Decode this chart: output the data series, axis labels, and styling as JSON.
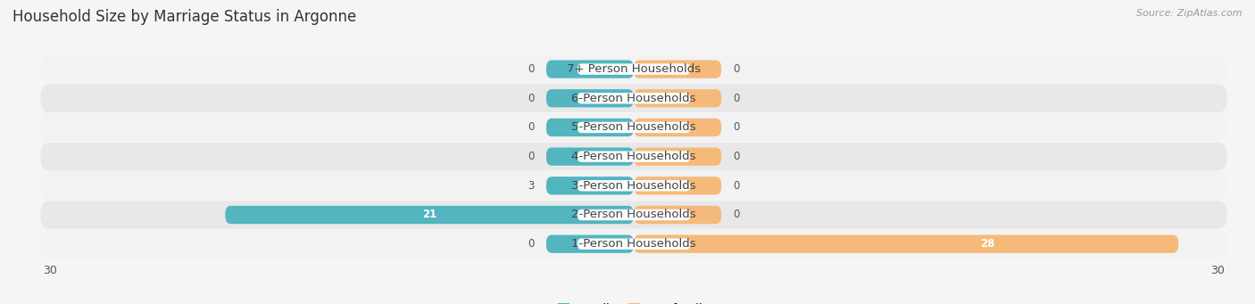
{
  "title": "Household Size by Marriage Status in Argonne",
  "source": "Source: ZipAtlas.com",
  "categories": [
    "7+ Person Households",
    "6-Person Households",
    "5-Person Households",
    "4-Person Households",
    "3-Person Households",
    "2-Person Households",
    "1-Person Households"
  ],
  "family_values": [
    0,
    0,
    0,
    0,
    3,
    21,
    0
  ],
  "nonfamily_values": [
    0,
    0,
    0,
    0,
    0,
    0,
    28
  ],
  "family_color": "#52b5c0",
  "nonfamily_color": "#f5b97a",
  "xlim": 30,
  "min_bar_half": 4.5,
  "bar_height": 0.62,
  "label_fontsize": 9.5,
  "title_fontsize": 12,
  "value_label_fontsize": 8.5,
  "legend_fontsize": 9.5,
  "row_colors": [
    "#f2f2f2",
    "#e8e8e8"
  ],
  "bg_color": "#f5f5f5"
}
